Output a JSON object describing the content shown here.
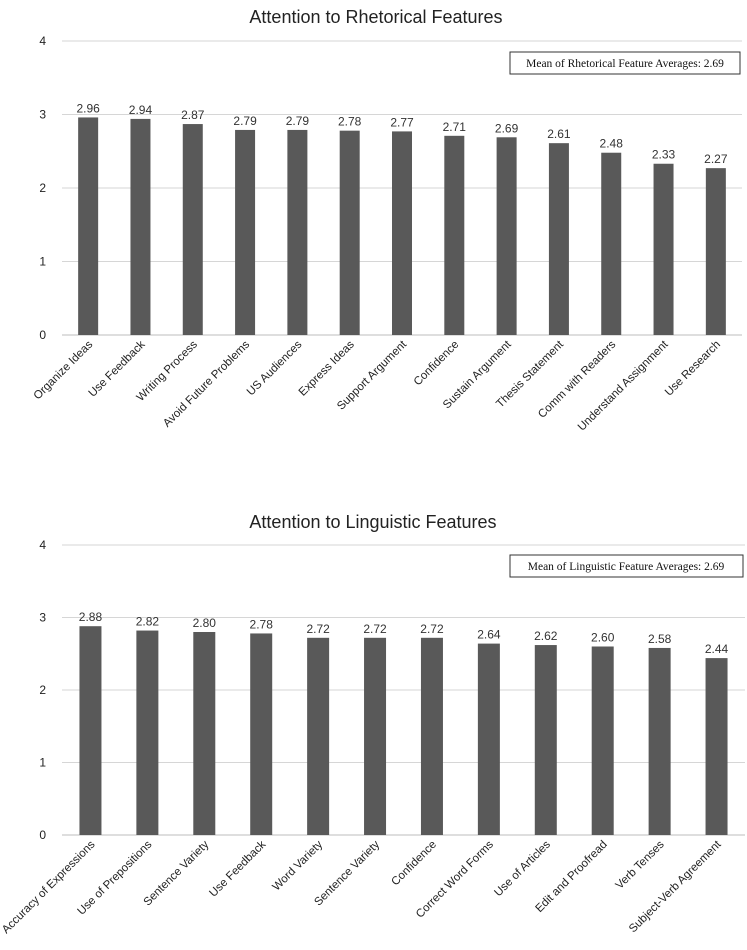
{
  "colors": {
    "bar": "#595959",
    "background": "#ffffff"
  },
  "chart_data": [
    {
      "type": "bar",
      "title": "Attention to Rhetorical Features",
      "categories": [
        "Organize Ideas",
        "Use Feedback",
        "Writing Process",
        "Avoid Future Problems",
        "US Audiences",
        "Express Ideas",
        "Support Argument",
        "Confidence",
        "Sustain Argument",
        "Thesis Statement",
        "Comm with Readers",
        "Understand Assignment",
        "Use Research"
      ],
      "values": [
        2.96,
        2.94,
        2.87,
        2.79,
        2.79,
        2.78,
        2.77,
        2.71,
        2.69,
        2.61,
        2.48,
        2.33,
        2.27
      ],
      "data_labels": [
        "2.96",
        "2.94",
        "2.87",
        "2.79",
        "2.79",
        "2.78",
        "2.77",
        "2.71",
        "2.69",
        "2.61",
        "2.48",
        "2.33",
        "2.27"
      ],
      "yticks": [
        "0",
        "1",
        "2",
        "3",
        "4"
      ],
      "ylim": [
        0,
        4
      ],
      "xlabel": "",
      "ylabel": "",
      "grid": true,
      "legend": "none",
      "annotation": "Mean of Rhetorical Feature Averages: 2.69"
    },
    {
      "type": "bar",
      "title": "Attention to Linguistic Features",
      "categories": [
        "Accuracy of Expressions",
        "Use of Prepositions",
        "Sentence Variety",
        "Use Feedback",
        "Word Variety",
        "Sentence Variety",
        "Confidence",
        "Correct Word Forms",
        "Use of Articles",
        "Edit and Proofread",
        "Verb Tenses",
        "Subject-Verb Agreement"
      ],
      "values": [
        2.88,
        2.82,
        2.8,
        2.78,
        2.72,
        2.72,
        2.72,
        2.64,
        2.62,
        2.6,
        2.58,
        2.44
      ],
      "data_labels": [
        "2.88",
        "2.82",
        "2.80",
        "2.78",
        "2.72",
        "2.72",
        "2.72",
        "2.64",
        "2.62",
        "2.60",
        "2.58",
        "2.44"
      ],
      "yticks": [
        "0",
        "1",
        "2",
        "3",
        "4"
      ],
      "ylim": [
        0,
        4
      ],
      "xlabel": "",
      "ylabel": "",
      "grid": true,
      "legend": "none",
      "annotation": "Mean of Linguistic Feature Averages: 2.69"
    }
  ]
}
